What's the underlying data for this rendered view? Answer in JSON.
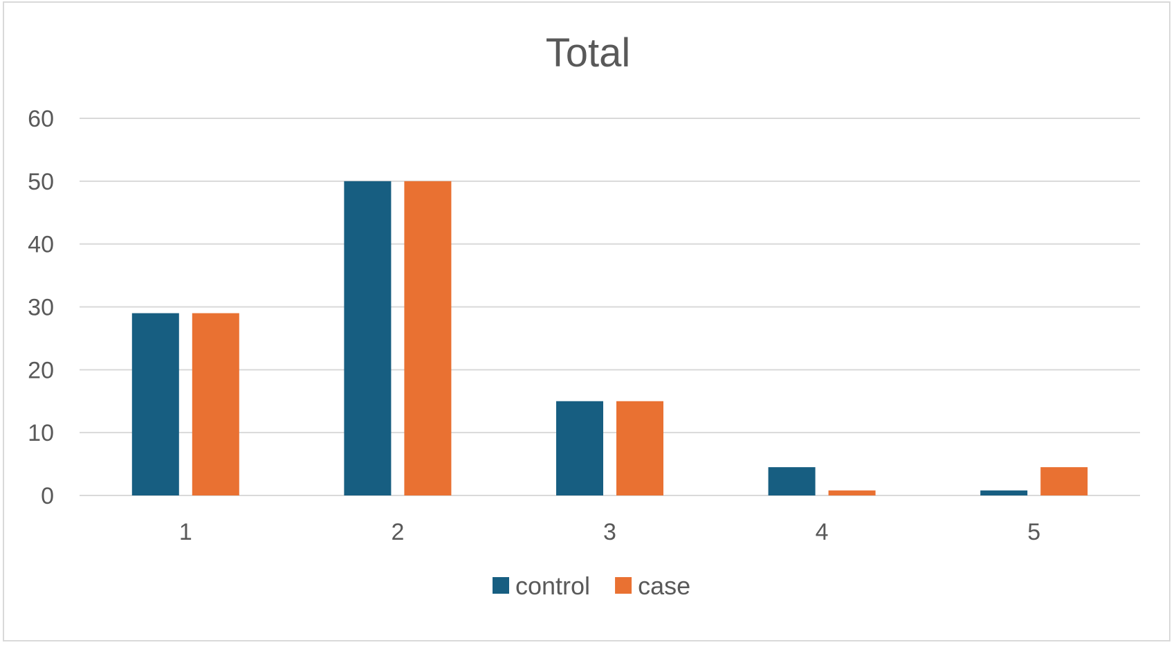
{
  "colors": {
    "control": "#175e81",
    "case": "#e97132",
    "grid": "#d9d9d9",
    "text": "#595959"
  },
  "chart_data": {
    "type": "bar",
    "title": "Total",
    "xlabel": "",
    "ylabel": "",
    "categories": [
      "1",
      "2",
      "3",
      "4",
      "5"
    ],
    "series": [
      {
        "name": "control",
        "values": [
          29,
          50,
          15,
          4.5,
          0.8
        ]
      },
      {
        "name": "case",
        "values": [
          29,
          50,
          15,
          0.8,
          4.5
        ]
      }
    ],
    "ylim": [
      0,
      60
    ],
    "yticks": [
      "0",
      "10",
      "20",
      "30",
      "40",
      "50",
      "60"
    ],
    "grid": true,
    "legend_position": "bottom"
  }
}
